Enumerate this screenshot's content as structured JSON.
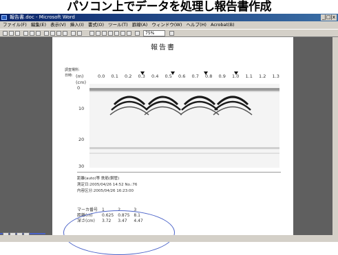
{
  "caption": "パソコン上でデータを処理し報告書作成",
  "window": {
    "title": "報告書.doc - Microsoft Word",
    "controls": "_|□|x"
  },
  "menu": [
    "ファイル(F)",
    "編集(E)",
    "表示(V)",
    "挿入(I)",
    "書式(O)",
    "ツール(T)",
    "罫線(A)",
    "ウィンドウ(W)",
    "ヘルプ(H)",
    "Acrobat(B)"
  ],
  "toolbar": {
    "zoom": "75%"
  },
  "document": {
    "title": "報告書",
    "survey_place_label": "調査場所:",
    "datetime_label": "日時:",
    "x_axis": {
      "unit": "(m)",
      "ticks": [
        "0.0",
        "0.1",
        "0.2",
        "0.3",
        "0.4",
        "0.5",
        "0.6",
        "0.7",
        "0.8",
        "0.9",
        "1.0",
        "1.1",
        "1.2",
        "1.3"
      ]
    },
    "y_axis": {
      "unit": "(cm)",
      "ticks": [
        "0",
        "10",
        "20",
        "30"
      ]
    },
    "info_lines": [
      "距離(auto)等 鉄筋(鋼管)",
      "測定日:2005/04/26 14:52 No.:76",
      "内容区分:2005/04/26 16:23:00"
    ],
    "marker_table": {
      "headers": [
        "マーカ番号",
        "1",
        "2",
        "3"
      ],
      "rows": [
        [
          "距離(m)",
          "0.625",
          "0.875",
          "8.1"
        ],
        [
          "深さ(cm)",
          "3.72",
          "3.47",
          "4.47"
        ]
      ]
    }
  }
}
